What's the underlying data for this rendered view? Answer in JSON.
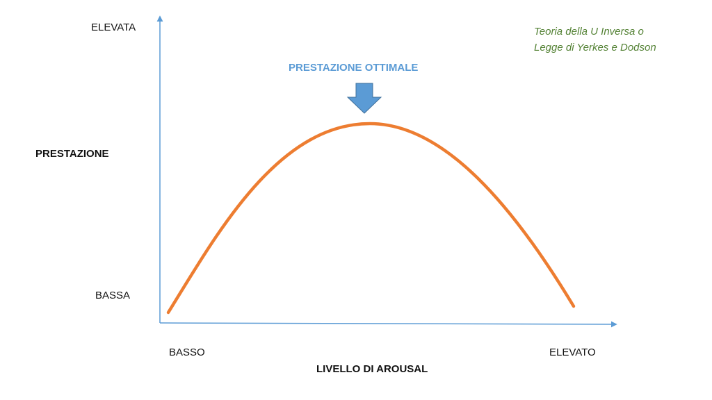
{
  "axes": {
    "y_top_label": "ELEVATA",
    "y_bottom_label": "BASSA",
    "y_title": "PRESTAZIONE",
    "x_left_label": "BASSO",
    "x_right_label": "ELEVATO",
    "x_title": "LIVELLO DI AROUSAL"
  },
  "peak_annotation": "PRESTAZIONE OTTIMALE",
  "theory_note": {
    "line1": "Teoria della U Inversa o",
    "line2": "Legge di Yerkes e Dodson"
  },
  "colors": {
    "axis": "#5b9bd5",
    "curve": "#ed7d31",
    "annotation": "#5b9bd5",
    "arrow_fill": "#5b9bd5",
    "note_text": "#548235",
    "label_text": "#111111"
  },
  "icons": {
    "peak_marker": "arrow-down-icon"
  }
}
